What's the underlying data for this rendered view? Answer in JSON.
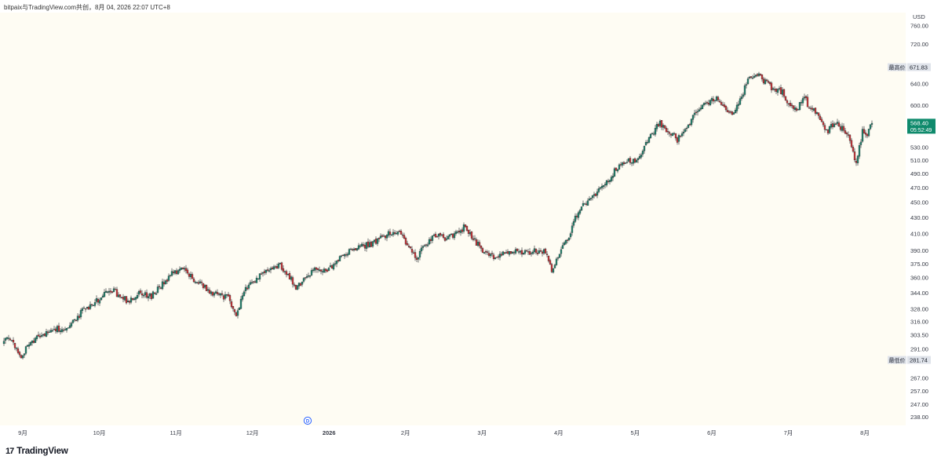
{
  "header": {
    "text": "bitpaix与TradingView.com共创，8月 04, 2026 22:07 UTC+8"
  },
  "footer": {
    "brand": "TradingView",
    "logo_icon": "tradingview-logo-icon"
  },
  "colors": {
    "background": "#fefcf3",
    "up": "#26856f",
    "down": "#c9383b",
    "wick": "#1e2227",
    "price_label_bg": "#0f8a6c",
    "high_low_bg": "#dfe3ea",
    "axis_text": "#363a45",
    "dividend_circle": "#2962ff"
  },
  "chart_data": {
    "type": "candlestick",
    "currency": "USD",
    "y_axis": {
      "scale": "log",
      "range": [
        232,
        790
      ],
      "ticks": [
        "238.00",
        "247.00",
        "257.00",
        "267.00",
        "281.74",
        "291.00",
        "303.50",
        "316.00",
        "328.00",
        "344.00",
        "360.00",
        "375.00",
        "390.00",
        "410.00",
        "430.00",
        "450.00",
        "470.00",
        "490.00",
        "510.00",
        "530.00",
        "568.40",
        "600.00",
        "640.00",
        "671.83",
        "720.00",
        "760.00"
      ]
    },
    "x_axis": {
      "labels": [
        "9月",
        "10月",
        "11月",
        "12月",
        "2026",
        "2月",
        "3月",
        "4月",
        "5月",
        "6月",
        "7月",
        "8月"
      ],
      "bold_labels": [
        "2026"
      ]
    },
    "current_price": {
      "value": "568.40",
      "countdown": "05:52:49"
    },
    "highest": {
      "label": "最高价",
      "value": "671.83"
    },
    "lowest": {
      "label": "最低价",
      "value": "281.74"
    },
    "event_marker": {
      "label": "D",
      "name": "dividend"
    },
    "anchors": [
      [
        0,
        296
      ],
      [
        10,
        300
      ],
      [
        18,
        293
      ],
      [
        26,
        283
      ],
      [
        36,
        296
      ],
      [
        50,
        302
      ],
      [
        64,
        309
      ],
      [
        80,
        309
      ],
      [
        90,
        315
      ],
      [
        104,
        325
      ],
      [
        120,
        334
      ],
      [
        134,
        344
      ],
      [
        146,
        344
      ],
      [
        154,
        338
      ],
      [
        162,
        335
      ],
      [
        176,
        343
      ],
      [
        192,
        341
      ],
      [
        206,
        352
      ],
      [
        220,
        367
      ],
      [
        236,
        368
      ],
      [
        244,
        358
      ],
      [
        256,
        352
      ],
      [
        270,
        344
      ],
      [
        290,
        338
      ],
      [
        300,
        323
      ],
      [
        312,
        348
      ],
      [
        326,
        358
      ],
      [
        340,
        367
      ],
      [
        356,
        373
      ],
      [
        366,
        364
      ],
      [
        376,
        350
      ],
      [
        388,
        357
      ],
      [
        400,
        368
      ],
      [
        420,
        370
      ],
      [
        432,
        382
      ],
      [
        446,
        390
      ],
      [
        460,
        396
      ],
      [
        474,
        398
      ],
      [
        486,
        405
      ],
      [
        498,
        411
      ],
      [
        506,
        413
      ],
      [
        518,
        396
      ],
      [
        530,
        382
      ],
      [
        540,
        395
      ],
      [
        554,
        409
      ],
      [
        566,
        405
      ],
      [
        578,
        410
      ],
      [
        592,
        419
      ],
      [
        602,
        404
      ],
      [
        612,
        392
      ],
      [
        624,
        385
      ],
      [
        632,
        381
      ],
      [
        648,
        391
      ],
      [
        664,
        388
      ],
      [
        680,
        389
      ],
      [
        694,
        386
      ],
      [
        702,
        370
      ],
      [
        714,
        392
      ],
      [
        724,
        404
      ],
      [
        730,
        425
      ],
      [
        742,
        446
      ],
      [
        754,
        456
      ],
      [
        764,
        468
      ],
      [
        774,
        482
      ],
      [
        784,
        497
      ],
      [
        796,
        506
      ],
      [
        810,
        511
      ],
      [
        818,
        524
      ],
      [
        828,
        548
      ],
      [
        838,
        568
      ],
      [
        850,
        558
      ],
      [
        862,
        541
      ],
      [
        874,
        564
      ],
      [
        888,
        590
      ],
      [
        900,
        603
      ],
      [
        912,
        615
      ],
      [
        922,
        596
      ],
      [
        932,
        582
      ],
      [
        944,
        618
      ],
      [
        952,
        649
      ],
      [
        962,
        660
      ],
      [
        974,
        642
      ],
      [
        986,
        628
      ],
      [
        996,
        626
      ],
      [
        1004,
        600
      ],
      [
        1014,
        588
      ],
      [
        1022,
        614
      ],
      [
        1032,
        596
      ],
      [
        1044,
        580
      ],
      [
        1052,
        555
      ],
      [
        1064,
        570
      ],
      [
        1072,
        560
      ],
      [
        1080,
        545
      ],
      [
        1090,
        505
      ],
      [
        1098,
        556
      ],
      [
        1104,
        549
      ],
      [
        1108,
        568.4
      ]
    ]
  }
}
